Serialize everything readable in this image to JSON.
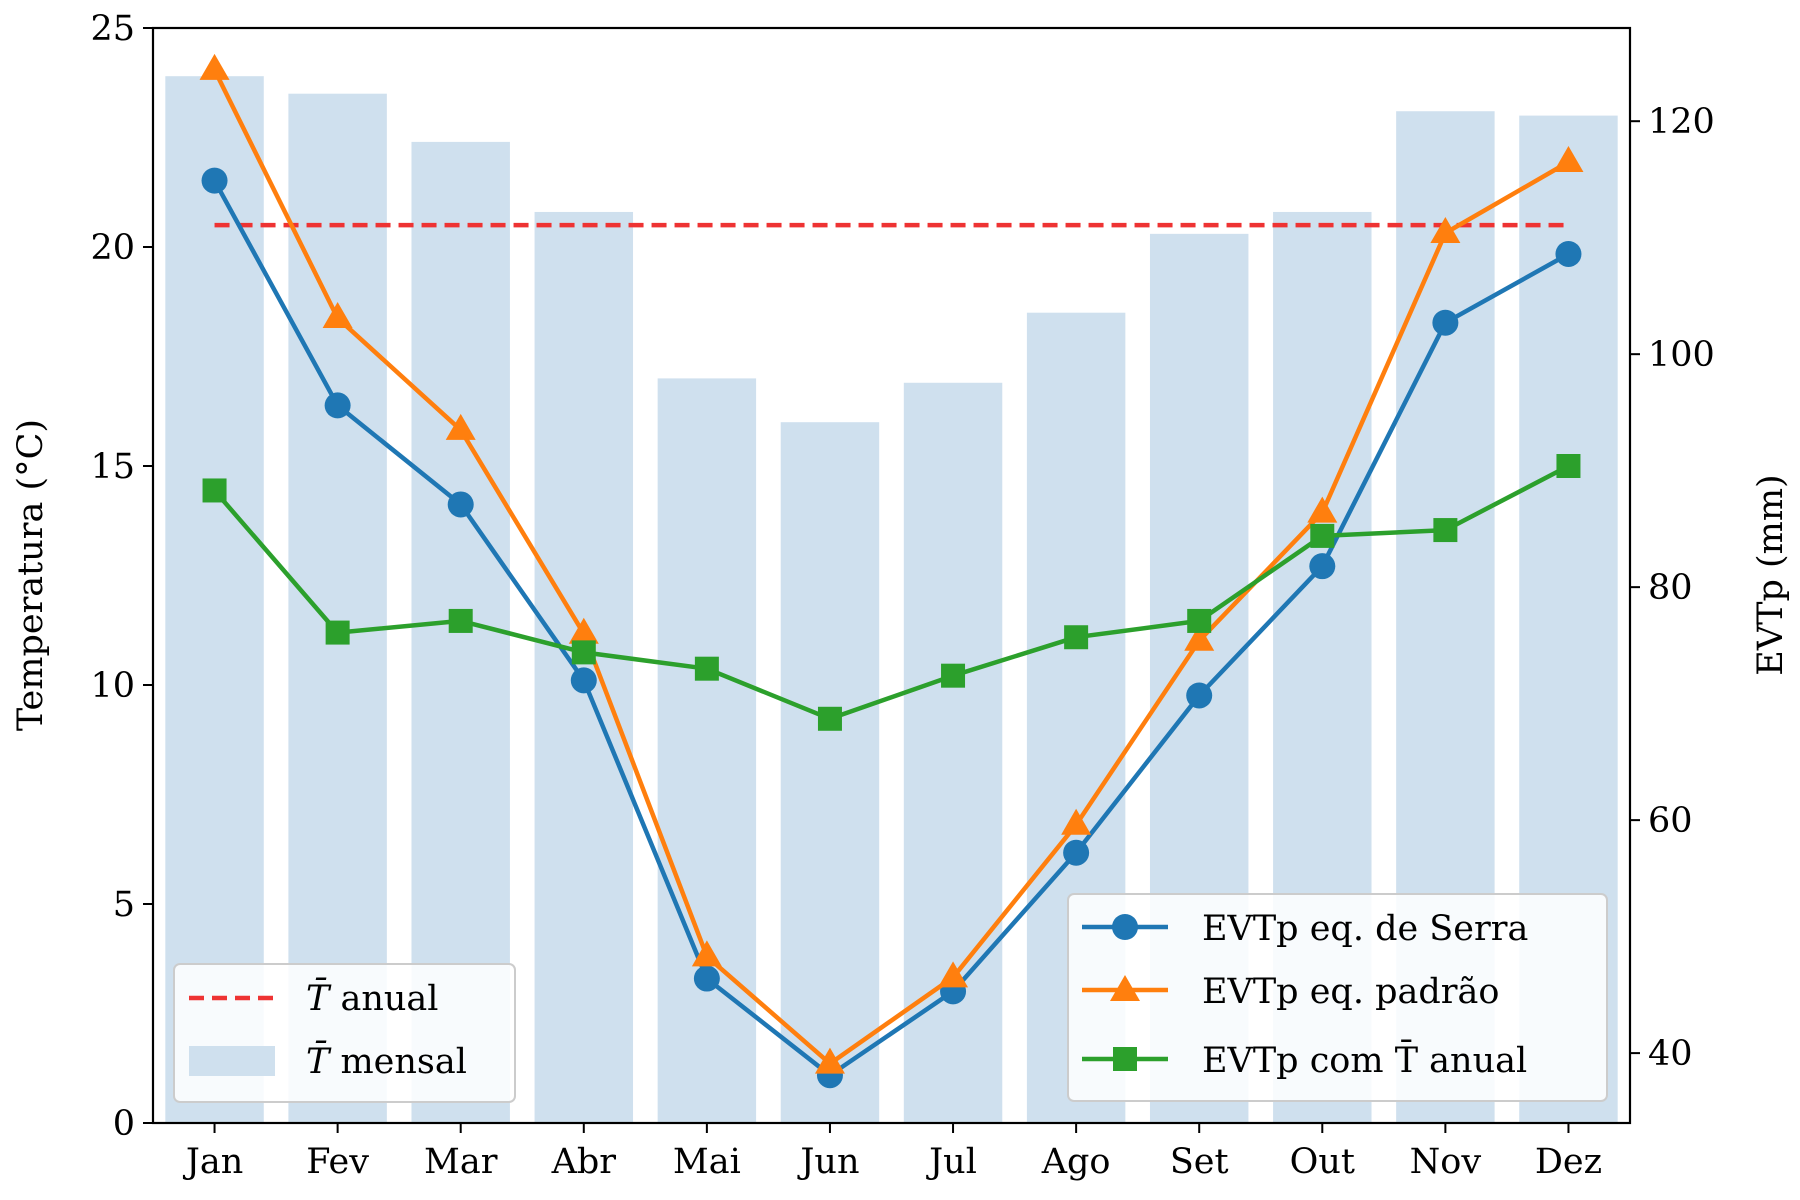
{
  "chart_data": {
    "type": "bar+line",
    "categories": [
      "Jan",
      "Fev",
      "Mar",
      "Abr",
      "Mai",
      "Jun",
      "Jul",
      "Ago",
      "Set",
      "Out",
      "Nov",
      "Dez"
    ],
    "left_axis": {
      "label": "Temperatura (°C)",
      "ylim": [
        0,
        25
      ],
      "ticks": [
        0,
        5,
        10,
        15,
        20,
        25
      ]
    },
    "right_axis": {
      "label": "EVTp (mm)",
      "ylim": [
        34,
        128
      ],
      "ticks": [
        40,
        60,
        80,
        100,
        120
      ]
    },
    "bars": {
      "name": "T̄ mensal",
      "axis": "left",
      "color": "#cfe0ee",
      "values": [
        23.9,
        23.5,
        22.4,
        20.8,
        17.0,
        16.0,
        16.9,
        18.5,
        20.3,
        20.8,
        23.1,
        23.0
      ]
    },
    "hline": {
      "name": "T̄ anual",
      "axis": "left",
      "color": "#ee3333",
      "value": 20.5
    },
    "series": [
      {
        "name": "EVTp eq. de Serra",
        "axis": "right",
        "color": "#1f77b4",
        "marker": "circle",
        "values": [
          114.9,
          95.6,
          87.1,
          72.0,
          46.4,
          38.1,
          45.3,
          57.2,
          70.7,
          81.8,
          102.7,
          108.6
        ]
      },
      {
        "name": "EVTp eq. padrão",
        "axis": "right",
        "color": "#ff7f0e",
        "marker": "triangle",
        "values": [
          124.4,
          103.1,
          93.5,
          76.0,
          48.3,
          39.1,
          46.5,
          59.6,
          75.4,
          86.4,
          110.4,
          116.5
        ]
      },
      {
        "name": "EVTp com T̄ anual",
        "axis": "right",
        "color": "#2ca02c",
        "marker": "square",
        "values": [
          88.3,
          76.1,
          77.1,
          74.4,
          73.0,
          68.7,
          72.4,
          75.7,
          77.1,
          84.4,
          84.9,
          90.4
        ]
      }
    ],
    "legend_left": {
      "placement": "lower-left",
      "entries": [
        {
          "prefix": "T̄",
          "text": " anual"
        },
        {
          "prefix": "T̄",
          "text": " mensal"
        }
      ]
    },
    "legend_right": {
      "placement": "lower-right",
      "entries": [
        {
          "text": "EVTp eq. de Serra"
        },
        {
          "text": "EVTp eq. padrão"
        },
        {
          "text": "EVTp com T̄ anual"
        }
      ]
    },
    "grid": false
  }
}
